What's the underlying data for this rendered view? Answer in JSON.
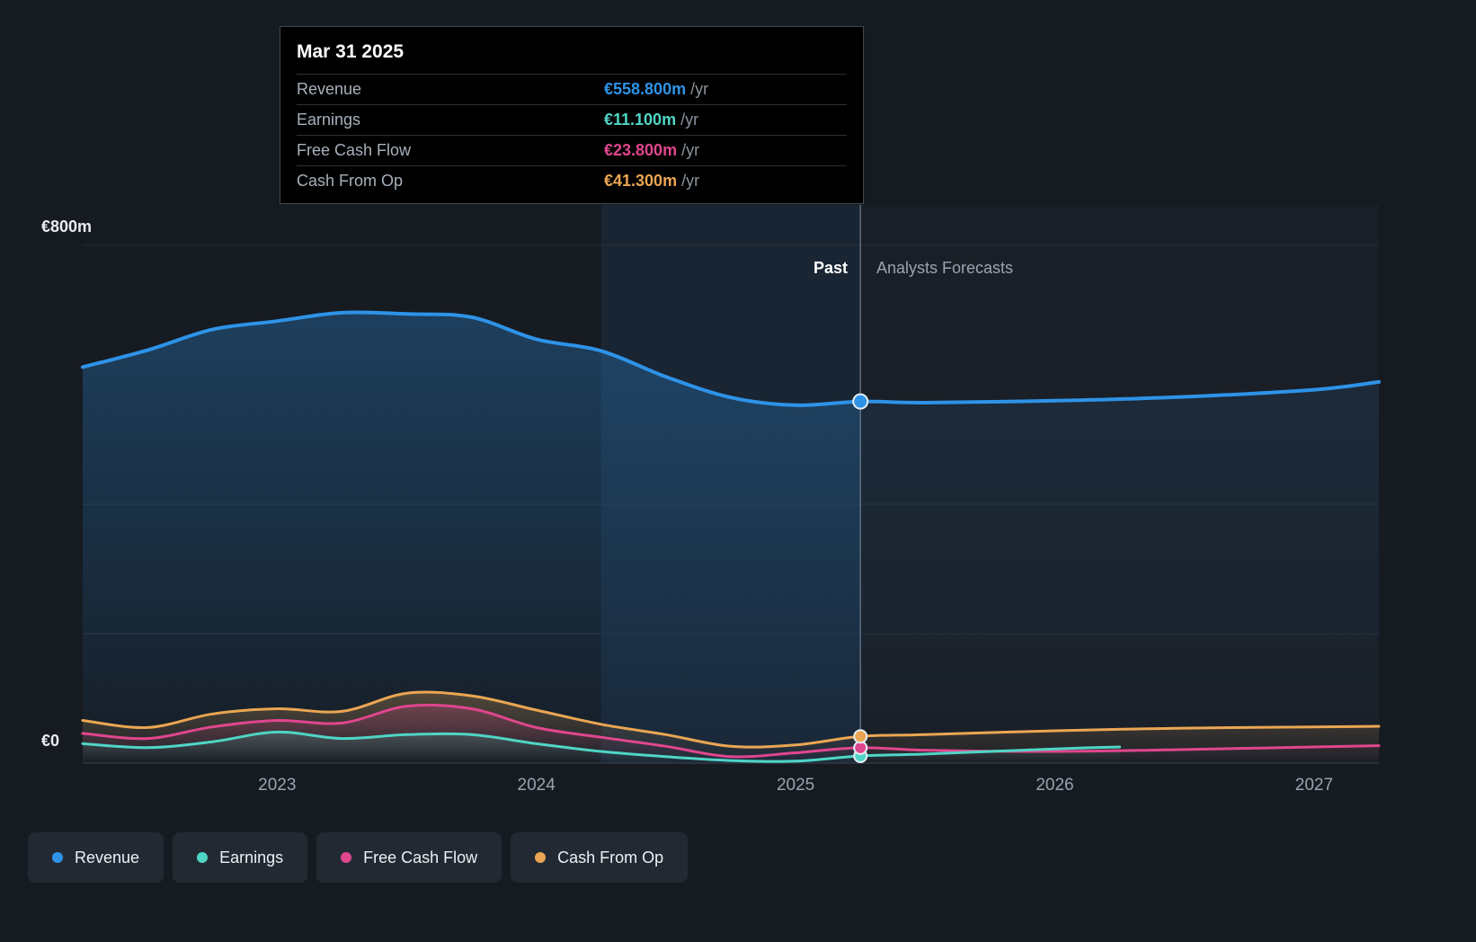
{
  "tooltip": {
    "date": "Mar 31 2025",
    "rows": [
      {
        "label": "Revenue",
        "value": "€558.800m",
        "unit": "/yr",
        "color": "#2e93e8"
      },
      {
        "label": "Earnings",
        "value": "€11.100m",
        "unit": "/yr",
        "color": "#4fd5c5"
      },
      {
        "label": "Free Cash Flow",
        "value": "€23.800m",
        "unit": "/yr",
        "color": "#e0468e"
      },
      {
        "label": "Cash From Op",
        "value": "€41.300m",
        "unit": "/yr",
        "color": "#eba653"
      }
    ]
  },
  "annotations": {
    "past_label": "Past",
    "forecast_label": "Analysts Forecasts"
  },
  "legend": {
    "items": [
      {
        "label": "Revenue",
        "color": "#2e93e8"
      },
      {
        "label": "Earnings",
        "color": "#4fd5c5"
      },
      {
        "label": "Free Cash Flow",
        "color": "#e0468e"
      },
      {
        "label": "Cash From Op",
        "color": "#eba653"
      }
    ]
  },
  "chart_data": {
    "type": "area",
    "units": "€m",
    "x_domain": [
      2022.25,
      2027.25
    ],
    "y_domain": [
      0,
      800
    ],
    "y_axis_labels": [
      "€800m",
      "€0"
    ],
    "y_gridlines_m": [
      800,
      400,
      200
    ],
    "x_ticks": [
      "2023",
      "2024",
      "2025",
      "2026",
      "2027"
    ],
    "x_tick_years": [
      2023,
      2024,
      2025,
      2026,
      2027
    ],
    "divider_x": 2025.25,
    "highlight_band": [
      2024.25,
      2025.25
    ],
    "series": [
      {
        "name": "Revenue",
        "color": "#2e93e8",
        "x": [
          2022.25,
          2022.5,
          2022.75,
          2023.0,
          2023.25,
          2023.5,
          2023.75,
          2024.0,
          2024.25,
          2024.5,
          2024.75,
          2025.0,
          2025.25,
          2025.5,
          2026.0,
          2026.5,
          2027.0,
          2027.25
        ],
        "values": [
          612,
          638,
          670,
          683,
          696,
          694,
          689,
          655,
          637,
          597,
          565,
          553,
          558.8,
          557,
          560,
          566,
          577,
          589
        ],
        "marker_value": 558.8
      },
      {
        "name": "Earnings",
        "color": "#4fd5c5",
        "x": [
          2022.25,
          2022.5,
          2022.75,
          2023.0,
          2023.25,
          2023.5,
          2023.75,
          2024.0,
          2024.25,
          2024.5,
          2024.75,
          2025.0,
          2025.25,
          2025.5,
          2026.0,
          2026.25
        ],
        "values": [
          30,
          24,
          33,
          48,
          38,
          44,
          44,
          30,
          18,
          10,
          4,
          3,
          11.1,
          14,
          22,
          25
        ],
        "marker_value": 11.1
      },
      {
        "name": "Free Cash Flow",
        "color": "#e0468e",
        "x": [
          2022.25,
          2022.5,
          2022.75,
          2023.0,
          2023.25,
          2023.5,
          2023.75,
          2024.0,
          2024.25,
          2024.5,
          2024.75,
          2025.0,
          2025.25,
          2025.5,
          2026.0,
          2026.5,
          2027.0,
          2027.25
        ],
        "values": [
          46,
          38,
          56,
          66,
          62,
          88,
          84,
          55,
          40,
          26,
          10,
          16,
          23.8,
          20,
          18,
          21,
          25,
          27
        ],
        "marker_value": 23.8
      },
      {
        "name": "Cash From Op",
        "color": "#eba653",
        "x": [
          2022.25,
          2022.5,
          2022.75,
          2023.0,
          2023.25,
          2023.5,
          2023.75,
          2024.0,
          2024.25,
          2024.5,
          2024.75,
          2025.0,
          2025.25,
          2025.5,
          2026.0,
          2026.5,
          2027.0,
          2027.25
        ],
        "values": [
          66,
          55,
          76,
          84,
          80,
          108,
          104,
          82,
          60,
          44,
          26,
          28,
          41.3,
          44,
          50,
          54,
          56,
          57
        ],
        "marker_value": 41.3
      }
    ]
  }
}
